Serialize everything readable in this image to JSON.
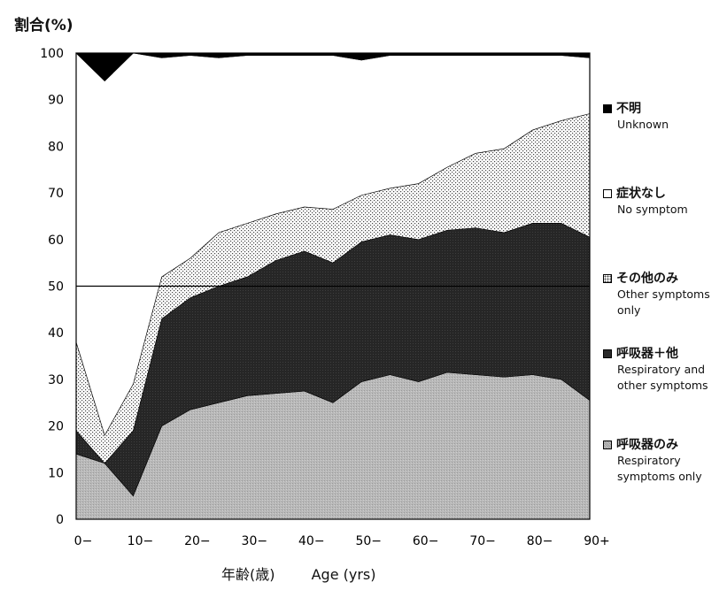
{
  "chart_data": {
    "type": "area",
    "stacked": true,
    "title": "",
    "ylabel": "割合(%)",
    "xlabel_ja": "年齢(歳)",
    "xlabel_en": "Age (yrs)",
    "ylim": [
      0,
      100
    ],
    "yticks": [
      "0",
      "10",
      "20",
      "30",
      "40",
      "50",
      "60",
      "70",
      "80",
      "90",
      "100"
    ],
    "x": [
      0,
      5,
      10,
      15,
      20,
      25,
      30,
      35,
      40,
      45,
      50,
      55,
      60,
      65,
      70,
      75,
      80,
      85,
      90
    ],
    "xticks": [
      {
        "value": 0,
        "label": "0−"
      },
      {
        "value": 10,
        "label": "10−"
      },
      {
        "value": 20,
        "label": "20−"
      },
      {
        "value": 30,
        "label": "30−"
      },
      {
        "value": 40,
        "label": "40−"
      },
      {
        "value": 50,
        "label": "50−"
      },
      {
        "value": 60,
        "label": "60−"
      },
      {
        "value": 70,
        "label": "70−"
      },
      {
        "value": 80,
        "label": "80−"
      },
      {
        "value": 90,
        "label": "90+"
      }
    ],
    "reference_line": 50,
    "series": [
      {
        "name": "呼吸器のみ",
        "name_en": "Respiratory\nsymptoms only",
        "fill": "resp",
        "values": [
          14,
          12,
          5,
          20,
          23.5,
          25,
          26.5,
          27,
          27.5,
          25,
          29.5,
          31,
          29.5,
          31.5,
          31,
          30.5,
          31,
          30,
          25.5
        ]
      },
      {
        "name": "呼吸器＋他",
        "name_en": "Respiratory and\nother symptoms",
        "fill": "dark",
        "values": [
          5,
          0,
          14,
          23,
          24,
          25,
          25.5,
          28.5,
          30,
          30,
          30,
          30,
          30.5,
          30.5,
          31.5,
          31,
          32.5,
          33.5,
          35
        ]
      },
      {
        "name": "その他のみ",
        "name_en": "Other symptoms\nonly",
        "fill": "dots",
        "values": [
          19,
          6,
          10,
          9,
          8.5,
          11.5,
          11.5,
          10,
          9.5,
          11.5,
          10,
          10,
          12,
          13.5,
          16,
          18,
          20,
          22,
          26.5
        ]
      },
      {
        "name": "症状なし",
        "name_en": "No symptom",
        "fill": "white",
        "values": [
          62,
          76,
          71,
          47,
          43.5,
          37.5,
          36,
          34,
          32.5,
          33,
          29,
          28.5,
          27.5,
          24,
          21,
          20,
          16,
          14,
          12
        ]
      },
      {
        "name": "不明",
        "name_en": "Unknown",
        "fill": "black",
        "values": [
          0,
          6,
          0,
          1,
          0.5,
          1,
          0.5,
          0.5,
          0.5,
          0.5,
          1.5,
          0.5,
          0.5,
          0.5,
          0.5,
          0.5,
          0.5,
          0.5,
          1
        ]
      }
    ],
    "legend_order": [
      4,
      3,
      2,
      1,
      0
    ],
    "legend_position": "right"
  }
}
